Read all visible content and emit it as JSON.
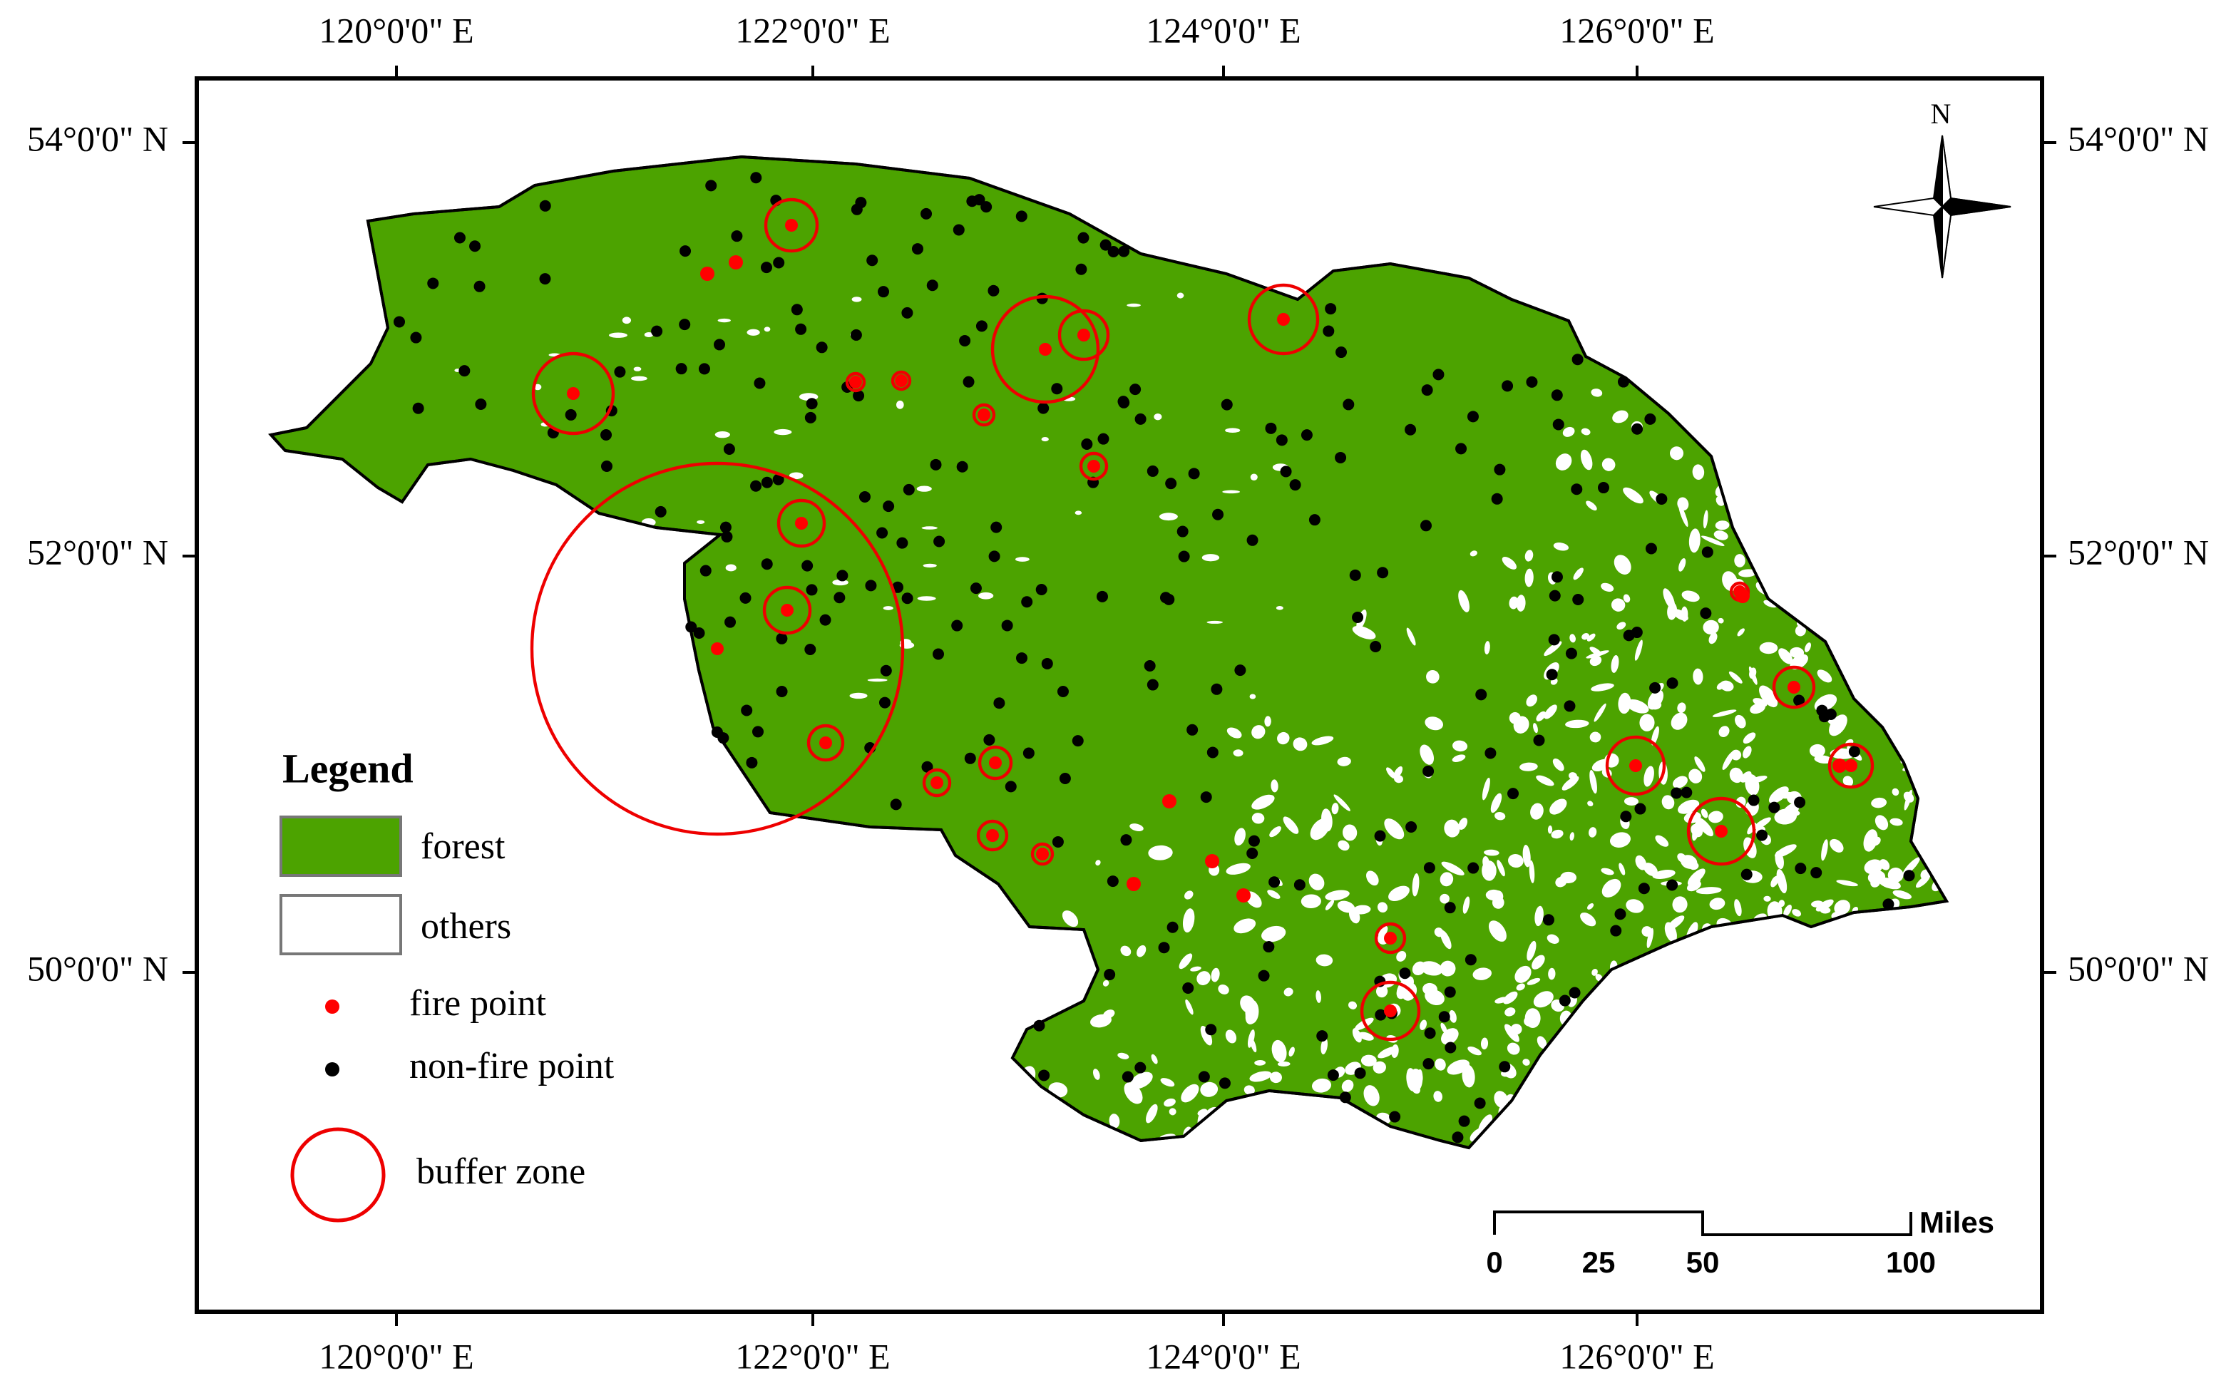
{
  "lon_labels": [
    "120°0'0\" E",
    "122°0'0\" E",
    "124°0'0\" E",
    "126°0'0\" E"
  ],
  "lat_labels": [
    "54°0'0\" N",
    "52°0'0\" N",
    "50°0'0\" N"
  ],
  "north": "N",
  "legend": {
    "title": "Legend",
    "items": [
      "forest",
      "others",
      "fire point",
      "non-fire point",
      "buffer zone"
    ]
  },
  "scale_bar": {
    "labels": [
      "0",
      "25",
      "50",
      "100"
    ],
    "unit": "Miles"
  }
}
